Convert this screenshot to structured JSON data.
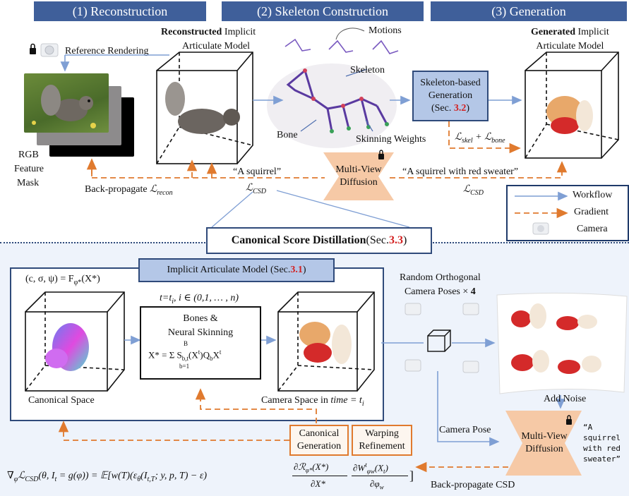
{
  "headers": {
    "reconstruction": "(1) Reconstruction",
    "skeleton": "(2) Skeleton Construction",
    "generation": "(3) Generation"
  },
  "top": {
    "reconstructed_model_bold": "Reconstructed",
    "reconstructed_model_rest": " Implicit",
    "reconstructed_model_line2": "Articulate Model",
    "reference_rendering": "Reference Rendering",
    "rgb": "RGB",
    "feature": "Feature",
    "mask": "Mask",
    "back_propagate": "Back-propagate ",
    "l_recon": "ℒ",
    "l_recon_sub": "recon",
    "motions": "Motions",
    "skeleton": "Skeleton",
    "bone": "Bone",
    "skinning_weights": "Skinning Weights",
    "skel_gen_line1": "Skeleton-based",
    "skel_gen_line2": "Generation",
    "skel_gen_sec_pre": "(Sec. ",
    "skel_gen_sec_num": "3.2",
    "skel_gen_sec_post": ")",
    "loss_skel": "ℒ",
    "loss_skel_sub": "skel",
    "loss_plus": " + ℒ",
    "loss_bone_sub": "bone",
    "generated_bold": "Generated",
    "generated_rest": " Implicit",
    "generated_line2": "Articulate Model",
    "prompt_left": "“A squirrel”",
    "prompt_right": "“A squirrel with red sweater”",
    "mvd_line1": "Multi-View",
    "mvd_line2": "Diffusion",
    "l_csd_left": "ℒ",
    "l_csd_left_sub": "CSD",
    "l_csd_right": "ℒ",
    "l_csd_right_sub": "CSD"
  },
  "legend": {
    "workflow": "Workflow",
    "gradient": "Gradient",
    "camera": "Camera"
  },
  "csd": {
    "title_bold": "Canonical Score Distillation",
    "title_pre": " (Sec. ",
    "title_num": "3.3",
    "title_post": ")"
  },
  "bottom": {
    "iam_title_pre": "Implicit Articulate Model (Sec. ",
    "iam_title_num": "3.1",
    "iam_title_post": ")",
    "param_eq": "(c, σ, ψ) = F",
    "param_eq_sub": "φ*",
    "param_eq_post": "(X*)",
    "t_eq": "t=t",
    "t_eq_sub": "i",
    "t_eq_rest": ",  i ∈ (0,1, … , n)",
    "bones_line1": "Bones &",
    "bones_line2": "Neural Skinning",
    "skin_eq": "X* = Σ S",
    "skin_eq_sub": "b,t",
    "skin_eq_post": "(X",
    "skin_eq_t": "t",
    "skin_eq_post2": ")Q",
    "skin_eq_q": "b",
    "skin_eq_post3": "X",
    "skin_eq_sup2": "t",
    "sum_top": "B",
    "sum_bot": "b=1",
    "canonical_space": "Canonical Space",
    "camera_space_pre": "Camera Space in ",
    "camera_space_time": "time",
    "camera_space_post": " = t",
    "camera_space_sub": "i",
    "random_line1": "Random Orthogonal",
    "random_line2": "Camera Poses × ",
    "random_num": "4",
    "add_noise": "Add Noise",
    "camera_pose": "Camera Pose",
    "mvd_line1": "Multi-View",
    "mvd_line2": "Diffusion",
    "prompt": "“A squirrel with red sweater”",
    "canon_gen_line1": "Canonical",
    "canon_gen_line2": "Generation",
    "warp_line1": "Warping",
    "warp_line2": "Refinement",
    "back_prop_csd": "Back-propagate CSD",
    "main_eq_left": "∇",
    "main_eq_left_sub": "φ",
    "main_eq_l": "ℒ",
    "main_eq_l_sub": "CSD",
    "main_eq_rest": "(θ, I",
    "main_eq_rest_sub": "t",
    "main_eq_rest2": " = g(φ)) = 𝔼[w(T)(ε",
    "main_eq_eps_sub": "θ",
    "main_eq_rest3": "(I",
    "main_eq_rest3_sub": "t,T",
    "main_eq_rest4": "; y, p, T) − ε)",
    "frac1_num": "∂ℛ",
    "frac1_num_sub": "φ*",
    "frac1_num_post": "(X*)",
    "frac1_den": "∂X*",
    "frac2_num": "∂W",
    "frac2_num_sup": "t",
    "frac2_num_sub": "φw",
    "frac2_num_post": "(X",
    "frac2_num_t": "t",
    "frac2_num_close": ")",
    "frac2_den": "∂φ",
    "frac2_den_sub": "w",
    "close_bracket": "]"
  },
  "colors": {
    "header_blue": "#3f5f9a",
    "box_blue": "#b4c7e7",
    "workflow_arrow": "#7f9fd4",
    "gradient_orange": "#e07a2e",
    "diffusion_fill": "#f6c9a6",
    "highlight_red": "#d32020"
  }
}
